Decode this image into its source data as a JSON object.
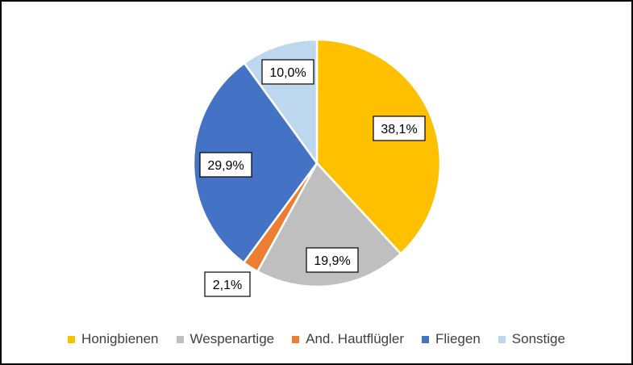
{
  "chart_data": {
    "type": "pie",
    "title": "",
    "categories": [
      "Honigbienen",
      "Wespenartige",
      "And. Hautflügler",
      "Fliegen",
      "Sonstige"
    ],
    "values": [
      38.1,
      19.9,
      2.1,
      29.9,
      10.0
    ],
    "labels": [
      "38,1%",
      "19,9%",
      "2,1%",
      "29,9%",
      "10,0%"
    ],
    "colors": [
      "#FFC000",
      "#BFBFBF",
      "#ED7D31",
      "#4472C4",
      "#BDD7EE"
    ],
    "legend_position": "bottom",
    "start_angle": "12 o'clock",
    "direction": "clockwise"
  }
}
